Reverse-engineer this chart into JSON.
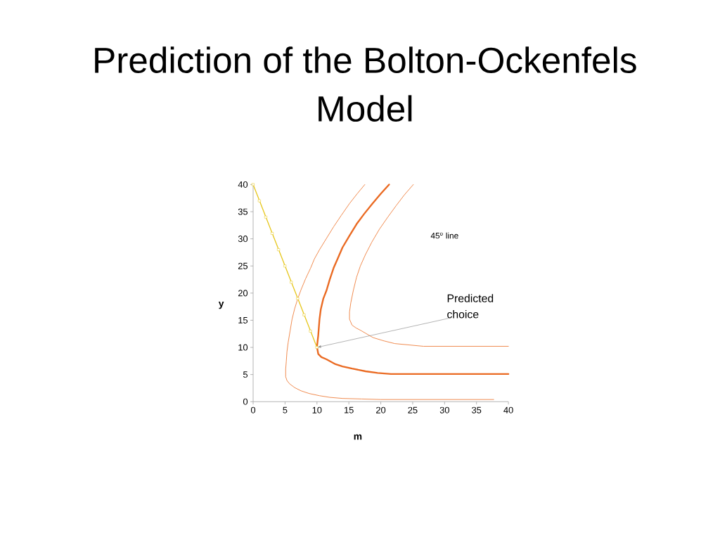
{
  "chart_data": {
    "type": "line",
    "title": "Prediction of the Bolton-Ockenfels Model",
    "xlabel": "m",
    "ylabel": "y",
    "xlim": [
      0,
      40
    ],
    "ylim": [
      0,
      40
    ],
    "xticks": [
      0,
      5,
      10,
      15,
      20,
      25,
      30,
      35,
      40
    ],
    "yticks": [
      0,
      5,
      10,
      15,
      20,
      25,
      30,
      35,
      40
    ],
    "annotations": [
      "45$^{o}$ line",
      {
        "text": "Predicted choice",
        "x": 10,
        "y": 10
      }
    ],
    "series": [
      {
        "color": "#f08a4e",
        "x": [
          17.5,
          16.3,
          15.1,
          13.8,
          12.6,
          11.5,
          10.4,
          9.6,
          9.0,
          8.2,
          7.5,
          7.0,
          6.5,
          6.1,
          5.8,
          5.5,
          5.3,
          5.2,
          5.1,
          5.1,
          5.3,
          5.7,
          6.5,
          7.5,
          8.8,
          10.4,
          12.0,
          14.0,
          17.0,
          20.0,
          25.0,
          30.0,
          37.7
        ],
        "values": [
          40,
          38.3,
          36.5,
          34.3,
          32.2,
          30.1,
          28.0,
          26.3,
          24.6,
          22.6,
          20.6,
          19.0,
          17.1,
          15.2,
          13.1,
          11.0,
          9.2,
          7.5,
          6.0,
          4.6,
          3.9,
          3.3,
          2.6,
          2.0,
          1.5,
          1.1,
          0.8,
          0.6,
          0.5,
          0.4,
          0.4,
          0.4,
          0.4
        ]
      },
      {
        "color": "#ea6a22",
        "x": [
          21.3,
          20.0,
          18.7,
          17.4,
          16.2,
          15.1,
          14.0,
          13.3,
          12.6,
          12.0,
          11.5,
          11.0,
          10.6,
          10.4,
          10.2,
          10.0,
          10.2,
          10.7,
          11.5,
          12.9,
          14.0,
          15.5,
          17.6,
          19.5,
          21.6,
          25.0,
          30.0,
          40.0
        ],
        "values": [
          40,
          38.3,
          36.5,
          34.6,
          32.7,
          30.6,
          28.4,
          26.5,
          24.6,
          22.5,
          20.5,
          19.0,
          17.0,
          15.2,
          12.2,
          10.1,
          8.8,
          8.2,
          7.8,
          6.9,
          6.5,
          6.1,
          5.6,
          5.3,
          5.1,
          5.1,
          5.1,
          5.1
        ]
      },
      {
        "color": "#f08a4e",
        "x": [
          25.1,
          23.7,
          22.4,
          21.1,
          19.8,
          18.6,
          17.6,
          16.8,
          16.2,
          15.7,
          15.3,
          15.1,
          15.1,
          15.5,
          16.1,
          16.9,
          18.8,
          20.5,
          22.2,
          24.9,
          26.7,
          30.0,
          40.0
        ],
        "values": [
          40,
          38.1,
          36.1,
          34.0,
          31.8,
          29.4,
          27.1,
          25.0,
          22.9,
          20.5,
          18.2,
          16.5,
          15.2,
          14.1,
          13.6,
          13.1,
          11.8,
          11.2,
          10.7,
          10.4,
          10.2,
          10.2,
          10.2
        ]
      },
      {
        "color": "#e6c619",
        "marker": "square",
        "x": [
          0,
          1,
          2,
          3,
          4,
          5,
          6,
          7,
          8,
          9,
          10
        ],
        "values": [
          40,
          37,
          34,
          31,
          28,
          25,
          22,
          19,
          16,
          13,
          10
        ]
      }
    ]
  }
}
